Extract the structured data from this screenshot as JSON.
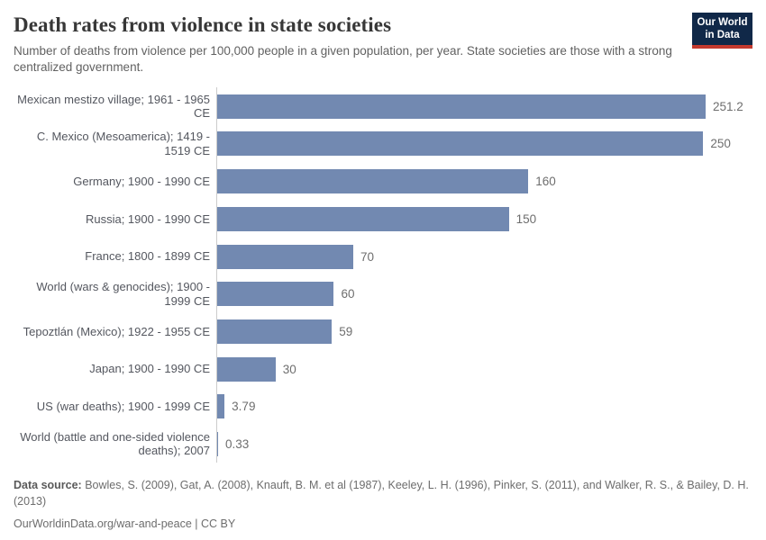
{
  "header": {
    "title": "Death rates from violence in state societies",
    "subtitle": "Number of deaths from violence per 100,000 people in a given population, per year. State societies are those with a strong centralized government.",
    "logo": {
      "line1": "Our World",
      "line2": "in Data"
    }
  },
  "chart_data": {
    "type": "bar",
    "orientation": "horizontal",
    "title": "Death rates from violence in state societies",
    "xlabel": "",
    "ylabel": "",
    "grid": false,
    "legend": "none",
    "xlim": [
      0,
      260
    ],
    "categories": [
      "Mexican mestizo village; 1961 - 1965 CE",
      "C. Mexico (Mesoamerica); 1419 - 1519 CE",
      "Germany; 1900 - 1990 CE",
      "Russia; 1900 - 1990 CE",
      "France; 1800 - 1899 CE",
      "World (wars & genocides); 1900 - 1999 CE",
      "Tepoztlán (Mexico); 1922 - 1955 CE",
      "Japan; 1900 - 1990 CE",
      "US (war deaths); 1900 - 1999 CE",
      "World (battle and one-sided violence deaths); 2007"
    ],
    "values": [
      251.2,
      250,
      160,
      150,
      70,
      60,
      59,
      30,
      3.79,
      0.33
    ],
    "value_labels": [
      "251.2",
      "250",
      "160",
      "150",
      "70",
      "60",
      "59",
      "30",
      "3.79",
      "0.33"
    ],
    "bar_color": "#7289b1",
    "axis_color": "#cccccc"
  },
  "footer": {
    "source_label": "Data source:",
    "source_text": " Bowles, S. (2009), Gat, A. (2008), Knauft, B. M. et al (1987), Keeley, L. H. (1996), Pinker, S. (2011), and Walker, R. S., & Bailey, D. H. (2013)",
    "link_text": "OurWorldinData.org/war-and-peace | CC BY"
  },
  "colors": {
    "bar": "#7289b1",
    "axis": "#cccccc",
    "logo_navy": "#102848",
    "logo_red": "#c3392e",
    "title_text": "#373737",
    "subtitle_text": "#616161",
    "label_text": "#54575f",
    "value_text": "#6e6e6e",
    "footer_text": "#6d6d6d"
  }
}
